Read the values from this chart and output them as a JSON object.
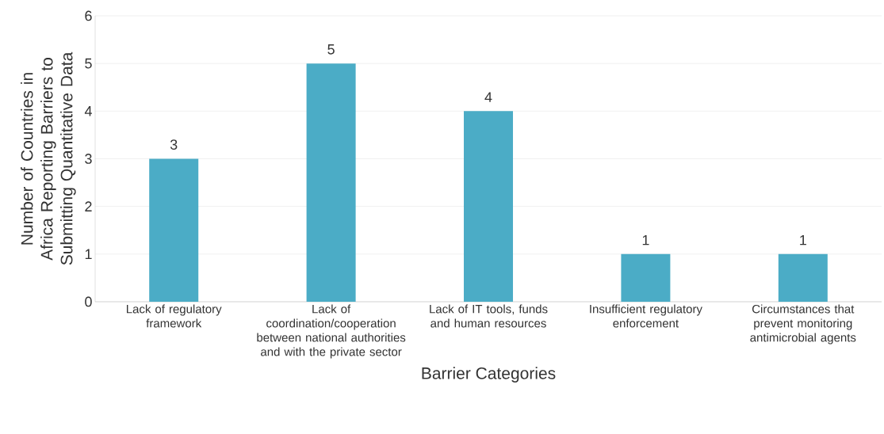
{
  "chart_data": {
    "type": "bar",
    "xlabel": "Barrier Categories",
    "ylabel": "Number of Countries in Africa Reporting Barriers to Submitting Quantitative Data",
    "categories": [
      "Lack of regulatory framework",
      "Lack of coordination/cooperation between national authorities and with the private sector",
      "Lack of IT tools, funds and human resources",
      "Insufficient regulatory enforcement",
      "Circumstances that prevent monitoring antimicrobial agents"
    ],
    "values": [
      3,
      5,
      4,
      1,
      1
    ],
    "color": "#4bacc6",
    "ylim": [
      0,
      6
    ],
    "yticks": [
      0,
      1,
      2,
      3,
      4,
      5,
      6
    ],
    "grid": "y",
    "data_labels": true
  }
}
